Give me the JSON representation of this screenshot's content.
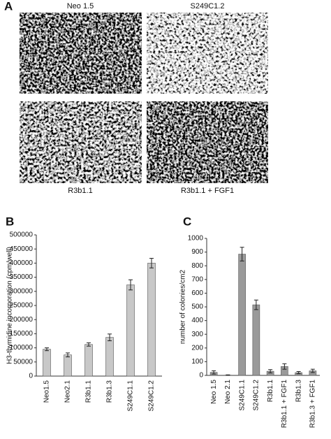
{
  "panel_labels": [
    "A",
    "B",
    "C"
  ],
  "micrographs": [
    {
      "label": "Neo 1.5"
    },
    {
      "label": "S249C1.2"
    },
    {
      "label": "R3b1.1"
    },
    {
      "label": "R3b1.1 + FGF1"
    }
  ],
  "chart_data": [
    {
      "type": "bar",
      "y_label": "H3-thymidine incorporation (cpm/well)",
      "categories": [
        "Neo1.5",
        "Neo2.1",
        "R3b1.1",
        "R3b1.3",
        "S249C1.1",
        "S249C1.2"
      ],
      "values": [
        95000,
        75000,
        112000,
        137000,
        323000,
        400000
      ],
      "errors": [
        5000,
        7000,
        6000,
        12000,
        18000,
        17000
      ],
      "color": "#c8c8c8",
      "ylim": [
        0,
        500000
      ],
      "yticks": [
        0,
        50000,
        100000,
        150000,
        200000,
        250000,
        300000,
        350000,
        400000,
        450000,
        500000
      ]
    },
    {
      "type": "bar",
      "y_label": "number of colonies/cm2",
      "categories": [
        "Neo 1.5",
        "Neo 2.1",
        "S249C1.1",
        "S249C1.2",
        "R3b1.1",
        "R3b1.1 + FGF1",
        "R3b1.3",
        "R3b1.3 + FGF1"
      ],
      "values": [
        22,
        2,
        885,
        515,
        30,
        65,
        20,
        33
      ],
      "errors": [
        12,
        2,
        50,
        35,
        12,
        20,
        8,
        12
      ],
      "color": "#9a9a9a",
      "ylim": [
        0,
        1000
      ],
      "yticks": [
        0,
        100,
        200,
        300,
        400,
        500,
        600,
        700,
        800,
        900,
        1000
      ]
    }
  ]
}
